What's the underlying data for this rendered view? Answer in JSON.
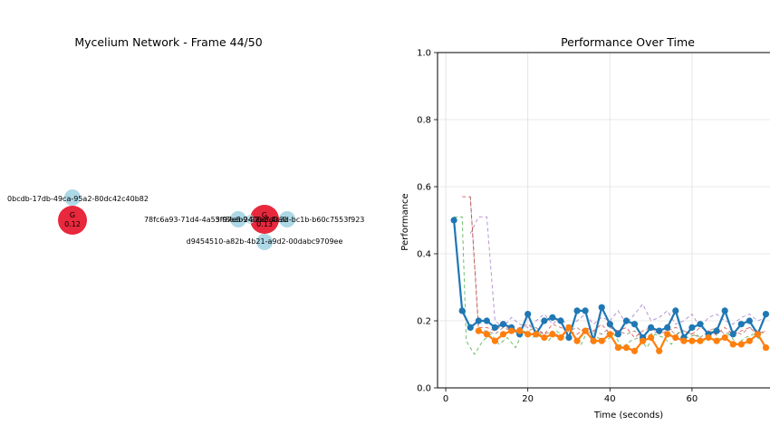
{
  "network": {
    "title": "Mycelium Network - Frame 44/50",
    "nodes": [
      {
        "id": "n1",
        "label": "0bcdb-17db-49ca-95a2-80dc42c40b82",
        "kind": "small",
        "color": "#add8e6"
      },
      {
        "id": "n2",
        "label": "G",
        "value": "0.12",
        "kind": "large",
        "color": "#e8283c"
      },
      {
        "id": "n3",
        "label": "78fc6a93-71d4-4a55-97e5-2406efd0a0",
        "kind": "small",
        "color": "#add8e6"
      },
      {
        "id": "n4",
        "label": "3ff8eab9-97a8-4c3d-bc1b-b60c7553f923",
        "kind": "small",
        "color": "#add8e6"
      },
      {
        "id": "n5",
        "label": "G",
        "value": "0.13",
        "kind": "large",
        "color": "#e8283c"
      },
      {
        "id": "n6",
        "label": "",
        "kind": "small",
        "color": "#add8e6"
      },
      {
        "id": "n7",
        "label": "d9454510-a82b-4b21-a9d2-00dabc9709ee",
        "kind": "small",
        "color": "#add8e6"
      }
    ]
  },
  "chart_data": {
    "type": "line",
    "title": "Performance Over Time",
    "xlabel": "Time (seconds)",
    "ylabel": "Performance",
    "xlim": [
      -2,
      79
    ],
    "ylim": [
      0.0,
      1.0
    ],
    "xticks": [
      "0",
      "20",
      "40",
      "60"
    ],
    "yticks": [
      "0.0",
      "0.2",
      "0.4",
      "0.6",
      "0.8",
      "1.0"
    ],
    "grid": true,
    "series": [
      {
        "name": "",
        "color": "#1f77b4",
        "style": "solid-marker",
        "x": [
          2,
          4,
          6,
          8,
          10,
          12,
          14,
          16,
          18,
          20,
          22,
          24,
          26,
          28,
          30,
          32,
          34,
          36,
          38,
          40,
          42,
          44,
          46,
          48,
          50,
          52,
          54,
          56,
          58,
          60,
          62,
          64,
          66,
          68,
          70,
          72,
          74,
          76,
          78
        ],
        "y": [
          0.5,
          0.23,
          0.18,
          0.2,
          0.2,
          0.18,
          0.19,
          0.18,
          0.16,
          0.22,
          0.16,
          0.2,
          0.21,
          0.2,
          0.15,
          0.23,
          0.23,
          0.14,
          0.24,
          0.19,
          0.16,
          0.2,
          0.19,
          0.15,
          0.18,
          0.17,
          0.18,
          0.23,
          0.15,
          0.18,
          0.19,
          0.16,
          0.17,
          0.23,
          0.16,
          0.19,
          0.2,
          0.16,
          0.22
        ]
      },
      {
        "name": "",
        "color": "#ff7f0e",
        "style": "solid-marker",
        "x": [
          8,
          10,
          12,
          14,
          16,
          18,
          20,
          22,
          24,
          26,
          28,
          30,
          32,
          34,
          36,
          38,
          40,
          42,
          44,
          46,
          48,
          50,
          52,
          54,
          56,
          58,
          60,
          62,
          64,
          66,
          68,
          70,
          72,
          74,
          76,
          78
        ],
        "y": [
          0.17,
          0.16,
          0.14,
          0.16,
          0.17,
          0.17,
          0.16,
          0.16,
          0.15,
          0.16,
          0.15,
          0.18,
          0.14,
          0.17,
          0.14,
          0.14,
          0.16,
          0.12,
          0.12,
          0.11,
          0.14,
          0.15,
          0.11,
          0.16,
          0.15,
          0.14,
          0.14,
          0.14,
          0.15,
          0.14,
          0.15,
          0.13,
          0.13,
          0.14,
          0.16,
          0.12
        ]
      },
      {
        "name": "",
        "color": "#2ca02c",
        "style": "dashed",
        "x": [
          2,
          4,
          5,
          7,
          9,
          11,
          13,
          15,
          17,
          19,
          21,
          23,
          25,
          27,
          29,
          31,
          33,
          35,
          37,
          39,
          41,
          43,
          45,
          47,
          49,
          51,
          53,
          55,
          57,
          59,
          61,
          63,
          65,
          67,
          69,
          71,
          73,
          75,
          77
        ],
        "y": [
          0.51,
          0.51,
          0.14,
          0.1,
          0.14,
          0.16,
          0.13,
          0.15,
          0.12,
          0.17,
          0.15,
          0.16,
          0.14,
          0.17,
          0.15,
          0.16,
          0.13,
          0.18,
          0.15,
          0.14,
          0.16,
          0.12,
          0.14,
          0.15,
          0.12,
          0.16,
          0.15,
          0.13,
          0.17,
          0.15,
          0.16,
          0.14,
          0.17,
          0.14,
          0.16,
          0.13,
          0.15,
          0.16,
          0.14
        ]
      },
      {
        "name": "",
        "color": "#d62728",
        "style": "dashed",
        "x": [
          4,
          6,
          8,
          10,
          12,
          14,
          16,
          18,
          20,
          22,
          24,
          26,
          28,
          30,
          32,
          34,
          36,
          38,
          40,
          42,
          44,
          46,
          48,
          50,
          52,
          54,
          56,
          58,
          60,
          62,
          64,
          66,
          68,
          70,
          72,
          74,
          76,
          78
        ],
        "y": [
          0.57,
          0.57,
          0.18,
          0.18,
          0.17,
          0.19,
          0.17,
          0.18,
          0.19,
          0.17,
          0.16,
          0.19,
          0.18,
          0.17,
          0.16,
          0.18,
          0.17,
          0.19,
          0.16,
          0.17,
          0.18,
          0.15,
          0.17,
          0.18,
          0.16,
          0.17,
          0.18,
          0.17,
          0.16,
          0.18,
          0.17,
          0.16,
          0.18,
          0.16,
          0.17,
          0.18,
          0.16,
          0.17
        ]
      },
      {
        "name": "",
        "color": "#9467bd",
        "style": "dashed",
        "x": [
          6,
          8,
          10,
          12,
          14,
          16,
          18,
          20,
          22,
          24,
          26,
          28,
          30,
          32,
          34,
          36,
          38,
          40,
          42,
          44,
          46,
          48,
          50,
          52,
          54,
          56,
          58,
          60,
          62,
          64,
          66,
          68,
          70,
          72,
          74,
          76,
          78
        ],
        "y": [
          0.46,
          0.51,
          0.51,
          0.2,
          0.18,
          0.21,
          0.19,
          0.18,
          0.2,
          0.22,
          0.19,
          0.21,
          0.18,
          0.2,
          0.22,
          0.19,
          0.21,
          0.2,
          0.23,
          0.19,
          0.22,
          0.25,
          0.2,
          0.21,
          0.23,
          0.19,
          0.2,
          0.22,
          0.18,
          0.21,
          0.22,
          0.2,
          0.19,
          0.21,
          0.22,
          0.2,
          0.21
        ]
      },
      {
        "name": "",
        "color": "#8c564b",
        "style": "dashed",
        "x": [
          6,
          8,
          10,
          12,
          14,
          16,
          18,
          20,
          22,
          24,
          26,
          28,
          30,
          32,
          34,
          36,
          38,
          40,
          42,
          44,
          46,
          48,
          50,
          52,
          54,
          56,
          58,
          60,
          62,
          64,
          66,
          68,
          70,
          72,
          74,
          76,
          78
        ],
        "y": [
          0.57,
          0.17,
          0.17,
          0.16,
          0.18,
          0.17,
          0.16,
          0.17,
          0.18,
          0.16,
          0.17,
          0.15,
          0.17,
          0.18,
          0.16,
          0.17,
          0.16,
          0.18,
          0.17,
          0.16,
          0.17,
          0.15,
          0.16,
          0.17,
          0.18,
          0.16,
          0.17,
          0.16,
          0.15,
          0.17,
          0.18,
          0.16,
          0.17,
          0.16,
          0.18,
          0.17,
          0.16
        ]
      }
    ]
  }
}
